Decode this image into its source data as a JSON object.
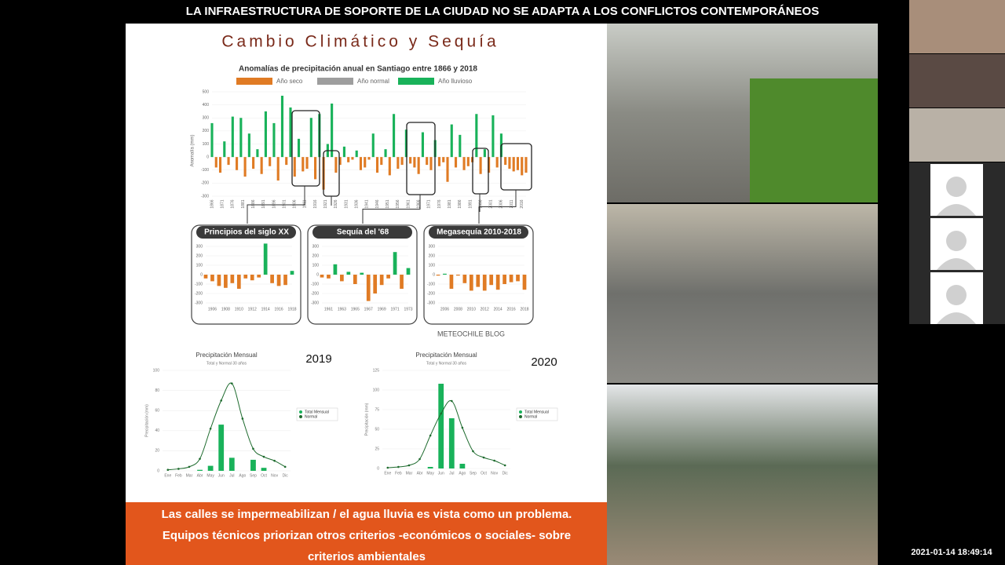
{
  "header": {
    "title": "LA INFRAESTRUCTURA DE SOPORTE DE LA CIUDAD NO SE ADAPTA A LOS CONFLICTOS CONTEMPORÁNEOS"
  },
  "slide": {
    "title": "Cambio Climático y Sequía",
    "anomaly_chart": {
      "type": "bar",
      "title": "Anomalías de precipitación anual en Santiago entre 1866 y 2018",
      "legend": [
        {
          "name": "Año seco",
          "color": "#e07b24"
        },
        {
          "name": "Año normal",
          "color": "#9e9e9e"
        },
        {
          "name": "Año lluvioso",
          "color": "#19b25a"
        }
      ],
      "y_label": "Anomalía (mm)",
      "ylim": [
        -300,
        500
      ],
      "yticks": [
        500,
        400,
        300,
        200,
        100,
        0,
        -100,
        -200,
        -300
      ],
      "xlim": [
        1866,
        2018
      ],
      "xticks": [
        1866,
        1871,
        1876,
        1881,
        1886,
        1891,
        1896,
        1901,
        1906,
        1911,
        1916,
        1921,
        1926,
        1931,
        1936,
        1941,
        1946,
        1951,
        1956,
        1961,
        1966,
        1971,
        1976,
        1981,
        1986,
        1991,
        1996,
        2001,
        2006,
        2011,
        2016
      ],
      "values": [
        260,
        -80,
        -120,
        120,
        -60,
        310,
        -100,
        300,
        -150,
        180,
        -90,
        60,
        -130,
        350,
        -70,
        260,
        -180,
        470,
        -60,
        380,
        -150,
        140,
        -110,
        -90,
        300,
        -170,
        330,
        -250,
        100,
        410,
        -120,
        -60,
        80,
        -40,
        -20,
        50,
        -100,
        -80,
        -20,
        180,
        -120,
        -60,
        60,
        -140,
        330,
        -90,
        -60,
        210,
        -50,
        -80,
        -130,
        190,
        -60,
        -100,
        130,
        -70,
        -40,
        -190,
        250,
        -80,
        170,
        -100,
        -70,
        -40,
        330,
        -130,
        60,
        -120,
        320,
        -80,
        180,
        -60,
        -90,
        -110,
        -100,
        -140,
        -120
      ]
    },
    "panels": [
      {
        "type": "bar",
        "title": "Principios del siglo XX",
        "ylim": [
          -300,
          300
        ],
        "yticks": [
          300,
          200,
          100,
          0,
          -100,
          -200,
          -300
        ],
        "xlim": [
          1905,
          1918
        ],
        "xticks": [
          1906,
          1908,
          1910,
          1912,
          1914,
          1916,
          1918
        ],
        "values": [
          -40,
          -70,
          -120,
          -140,
          -90,
          -150,
          -40,
          -60,
          -30,
          330,
          -90,
          -120,
          -110,
          40
        ]
      },
      {
        "type": "bar",
        "title": "Sequía del '68",
        "ylim": [
          -300,
          300
        ],
        "yticks": [
          300,
          200,
          100,
          0,
          -100,
          -200,
          -300
        ],
        "xlim": [
          1960,
          1973
        ],
        "xticks": [
          1961,
          1963,
          1965,
          1967,
          1969,
          1971,
          1973
        ],
        "values": [
          -30,
          -40,
          110,
          -70,
          30,
          -100,
          20,
          -280,
          -200,
          -110,
          -40,
          240,
          -150,
          70
        ]
      },
      {
        "type": "bar",
        "title": "Megasequía 2010-2018",
        "ylim": [
          -300,
          300
        ],
        "yticks": [
          300,
          200,
          100,
          0,
          -100,
          -200,
          -300
        ],
        "xlim": [
          2005,
          2018
        ],
        "xticks": [
          2006,
          2008,
          2010,
          2012,
          2014,
          2016,
          2018
        ],
        "values": [
          -10,
          10,
          -150,
          -10,
          -90,
          -170,
          -130,
          -170,
          -110,
          -160,
          -100,
          -80,
          -70,
          -160
        ]
      }
    ],
    "credit": "METEOCHILE BLOG",
    "monthly": [
      {
        "type": "bar",
        "year": "2019",
        "title": "Precipitación Mensual",
        "subtitle": "Total y Normal 30 años",
        "y_label": "Precipitación (mm)",
        "categories": [
          "Ene",
          "Feb",
          "Mar",
          "Abr",
          "May",
          "Jun",
          "Jul",
          "Ago",
          "Sep",
          "Oct",
          "Nov",
          "Dic"
        ],
        "ylim": [
          0,
          100
        ],
        "yticks": [
          0,
          20,
          40,
          60,
          80,
          100
        ],
        "series": [
          {
            "name": "Total Mensual",
            "color": "#19b25a",
            "values": [
              0,
              0,
              0,
              1,
              5,
              46,
              13,
              0,
              11,
              3,
              0,
              0
            ]
          },
          {
            "name": "Normal",
            "color": "#1e6b2e",
            "values": [
              1,
              2,
              4,
              12,
              42,
              70,
              87,
              52,
              22,
              14,
              10,
              4
            ]
          }
        ]
      },
      {
        "type": "bar",
        "year": "2020",
        "title": "Precipitación Mensual",
        "subtitle": "Total y Normal 30 años",
        "y_label": "Precipitación (mm)",
        "categories": [
          "Ene",
          "Feb",
          "Mar",
          "Abr",
          "May",
          "Jun",
          "Jul",
          "Ago",
          "Sep",
          "Oct",
          "Nov",
          "Dic"
        ],
        "ylim": [
          0,
          125
        ],
        "yticks": [
          0,
          25,
          50,
          75,
          100,
          125
        ],
        "series": [
          {
            "name": "Total Mensual",
            "color": "#19b25a",
            "values": [
              0,
              0,
              0,
              0,
              2,
              108,
              64,
              6,
              0,
              0,
              0,
              0
            ]
          },
          {
            "name": "Normal",
            "color": "#1e6b2e",
            "values": [
              1,
              2,
              4,
              12,
              42,
              70,
              86,
              52,
              22,
              14,
              10,
              4
            ]
          }
        ]
      }
    ],
    "banner": [
      "Las calles se impermeabilizan / el agua lluvia es vista como un problema.",
      "Equipos técnicos priorizan  otros criterios  -económicos o sociales- sobre",
      "criterios ambientales"
    ]
  },
  "timestamp": "2021-01-14 18:49:14"
}
